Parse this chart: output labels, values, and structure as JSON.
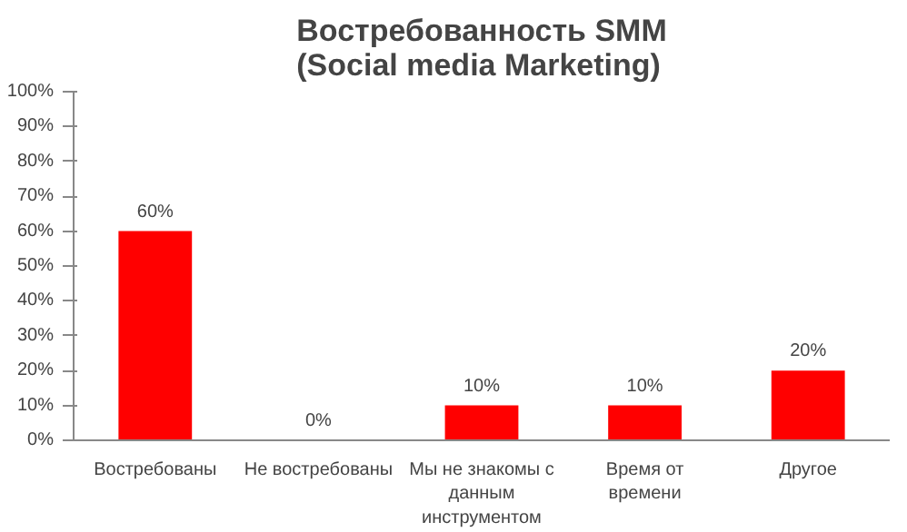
{
  "chart_data": {
    "type": "bar",
    "title": "Востребованность SMM\n(Social media Marketing)",
    "categories": [
      "Востребованы",
      "Не востребованы",
      "Мы не знакомы с данным инструментом",
      "Время от времени",
      "Другое"
    ],
    "values": [
      60,
      0,
      10,
      10,
      20
    ],
    "color": "#ff0000",
    "value_labels": [
      "60%",
      "0%",
      "10%",
      "10%",
      "20%"
    ],
    "ylim": [
      0,
      100
    ],
    "yticks": [
      {
        "value": 0,
        "label": "0%"
      },
      {
        "value": 10,
        "label": "10%"
      },
      {
        "value": 20,
        "label": "20%"
      },
      {
        "value": 30,
        "label": "30%"
      },
      {
        "value": 40,
        "label": "40%"
      },
      {
        "value": 50,
        "label": "50%"
      },
      {
        "value": 60,
        "label": "60%"
      },
      {
        "value": 70,
        "label": "70%"
      },
      {
        "value": 80,
        "label": "80%"
      },
      {
        "value": 90,
        "label": "90%"
      },
      {
        "value": 100,
        "label": "100%"
      }
    ],
    "grid": false
  }
}
